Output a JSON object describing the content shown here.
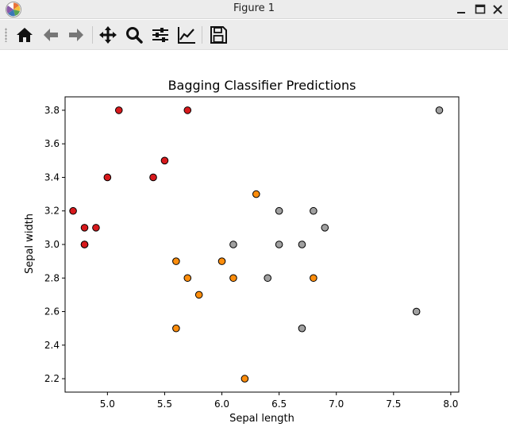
{
  "window": {
    "title": "Figure 1"
  },
  "toolbar": {
    "items": [
      {
        "name": "home-button",
        "icon": "home-icon"
      },
      {
        "name": "back-button",
        "icon": "arrow-left-icon"
      },
      {
        "name": "forward-button",
        "icon": "arrow-right-icon"
      },
      {
        "name": "pan-button",
        "icon": "move-icon"
      },
      {
        "name": "zoom-button",
        "icon": "magnifier-icon"
      },
      {
        "name": "configure-subplots-button",
        "icon": "sliders-icon"
      },
      {
        "name": "edit-axis-button",
        "icon": "line-chart-icon"
      },
      {
        "name": "save-button",
        "icon": "floppy-disk-icon"
      }
    ]
  },
  "chart_data": {
    "type": "scatter",
    "title": "Bagging Classifier Predictions",
    "xlabel": "Sepal length",
    "ylabel": "Sepal width",
    "xlim": [
      4.63,
      8.07
    ],
    "ylim": [
      2.12,
      3.88
    ],
    "xticks": [
      "5.0",
      "5.5",
      "6.0",
      "6.5",
      "7.0",
      "7.5",
      "8.0"
    ],
    "yticks": [
      "2.2",
      "2.4",
      "2.6",
      "2.8",
      "3.0",
      "3.2",
      "3.4",
      "3.6",
      "3.8"
    ],
    "grid": false,
    "colors": {
      "0": "#d7191c",
      "1": "#fd8d0c",
      "2": "#a0a0a0"
    },
    "points": [
      {
        "x": 5.1,
        "y": 3.8,
        "c": 0
      },
      {
        "x": 5.7,
        "y": 3.8,
        "c": 0
      },
      {
        "x": 5.5,
        "y": 3.5,
        "c": 0
      },
      {
        "x": 5.0,
        "y": 3.4,
        "c": 0
      },
      {
        "x": 5.4,
        "y": 3.4,
        "c": 0
      },
      {
        "x": 4.7,
        "y": 3.2,
        "c": 0
      },
      {
        "x": 4.8,
        "y": 3.1,
        "c": 0
      },
      {
        "x": 4.9,
        "y": 3.1,
        "c": 0
      },
      {
        "x": 4.8,
        "y": 3.0,
        "c": 0
      },
      {
        "x": 4.8,
        "y": 3.0,
        "c": 0
      },
      {
        "x": 6.3,
        "y": 3.3,
        "c": 1
      },
      {
        "x": 5.6,
        "y": 2.9,
        "c": 1
      },
      {
        "x": 6.0,
        "y": 2.9,
        "c": 1
      },
      {
        "x": 5.7,
        "y": 2.8,
        "c": 1
      },
      {
        "x": 6.1,
        "y": 2.8,
        "c": 1
      },
      {
        "x": 6.8,
        "y": 2.8,
        "c": 1
      },
      {
        "x": 5.8,
        "y": 2.7,
        "c": 1
      },
      {
        "x": 5.6,
        "y": 2.5,
        "c": 1
      },
      {
        "x": 6.2,
        "y": 2.2,
        "c": 1
      },
      {
        "x": 7.9,
        "y": 3.8,
        "c": 2
      },
      {
        "x": 6.5,
        "y": 3.2,
        "c": 2
      },
      {
        "x": 6.8,
        "y": 3.2,
        "c": 2
      },
      {
        "x": 6.9,
        "y": 3.1,
        "c": 2
      },
      {
        "x": 6.1,
        "y": 3.0,
        "c": 2
      },
      {
        "x": 6.5,
        "y": 3.0,
        "c": 2
      },
      {
        "x": 6.7,
        "y": 3.0,
        "c": 2
      },
      {
        "x": 6.4,
        "y": 2.8,
        "c": 2
      },
      {
        "x": 7.7,
        "y": 2.6,
        "c": 2
      },
      {
        "x": 6.7,
        "y": 2.5,
        "c": 2
      }
    ]
  }
}
